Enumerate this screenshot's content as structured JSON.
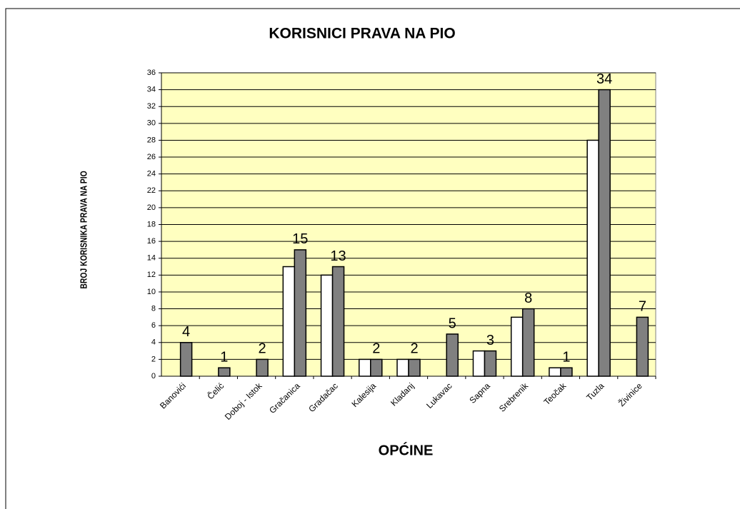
{
  "chart_data": {
    "type": "bar",
    "title": "KORISNICI PRAVA NA PIO",
    "y_label": "BROJ KORISNIKA PRAVA NA PIO",
    "x_label": "OPĆINE",
    "categories": [
      "Banovići",
      "Čelić",
      "Doboj - Istok",
      "Gračanica",
      "Gradačac",
      "Kalesija",
      "Kladanj",
      "Lukavac",
      "Sapna",
      "Srebrenik",
      "Teočak",
      "Tuzla",
      "Živinice"
    ],
    "series": [
      {
        "color": "#ffffff",
        "values": [
          null,
          null,
          null,
          13,
          12,
          2,
          2,
          null,
          3,
          7,
          1,
          28,
          null
        ]
      },
      {
        "color": "#808080",
        "values": [
          4,
          1,
          2,
          15,
          13,
          2,
          2,
          5,
          3,
          8,
          1,
          34,
          7
        ],
        "data_labels": true
      }
    ],
    "ylim": [
      0,
      36
    ],
    "yticks": [
      0,
      2,
      4,
      6,
      8,
      10,
      12,
      14,
      16,
      18,
      20,
      22,
      24,
      26,
      28,
      30,
      32,
      34,
      36
    ],
    "grid": true,
    "plot_background": "#ffffc0"
  }
}
